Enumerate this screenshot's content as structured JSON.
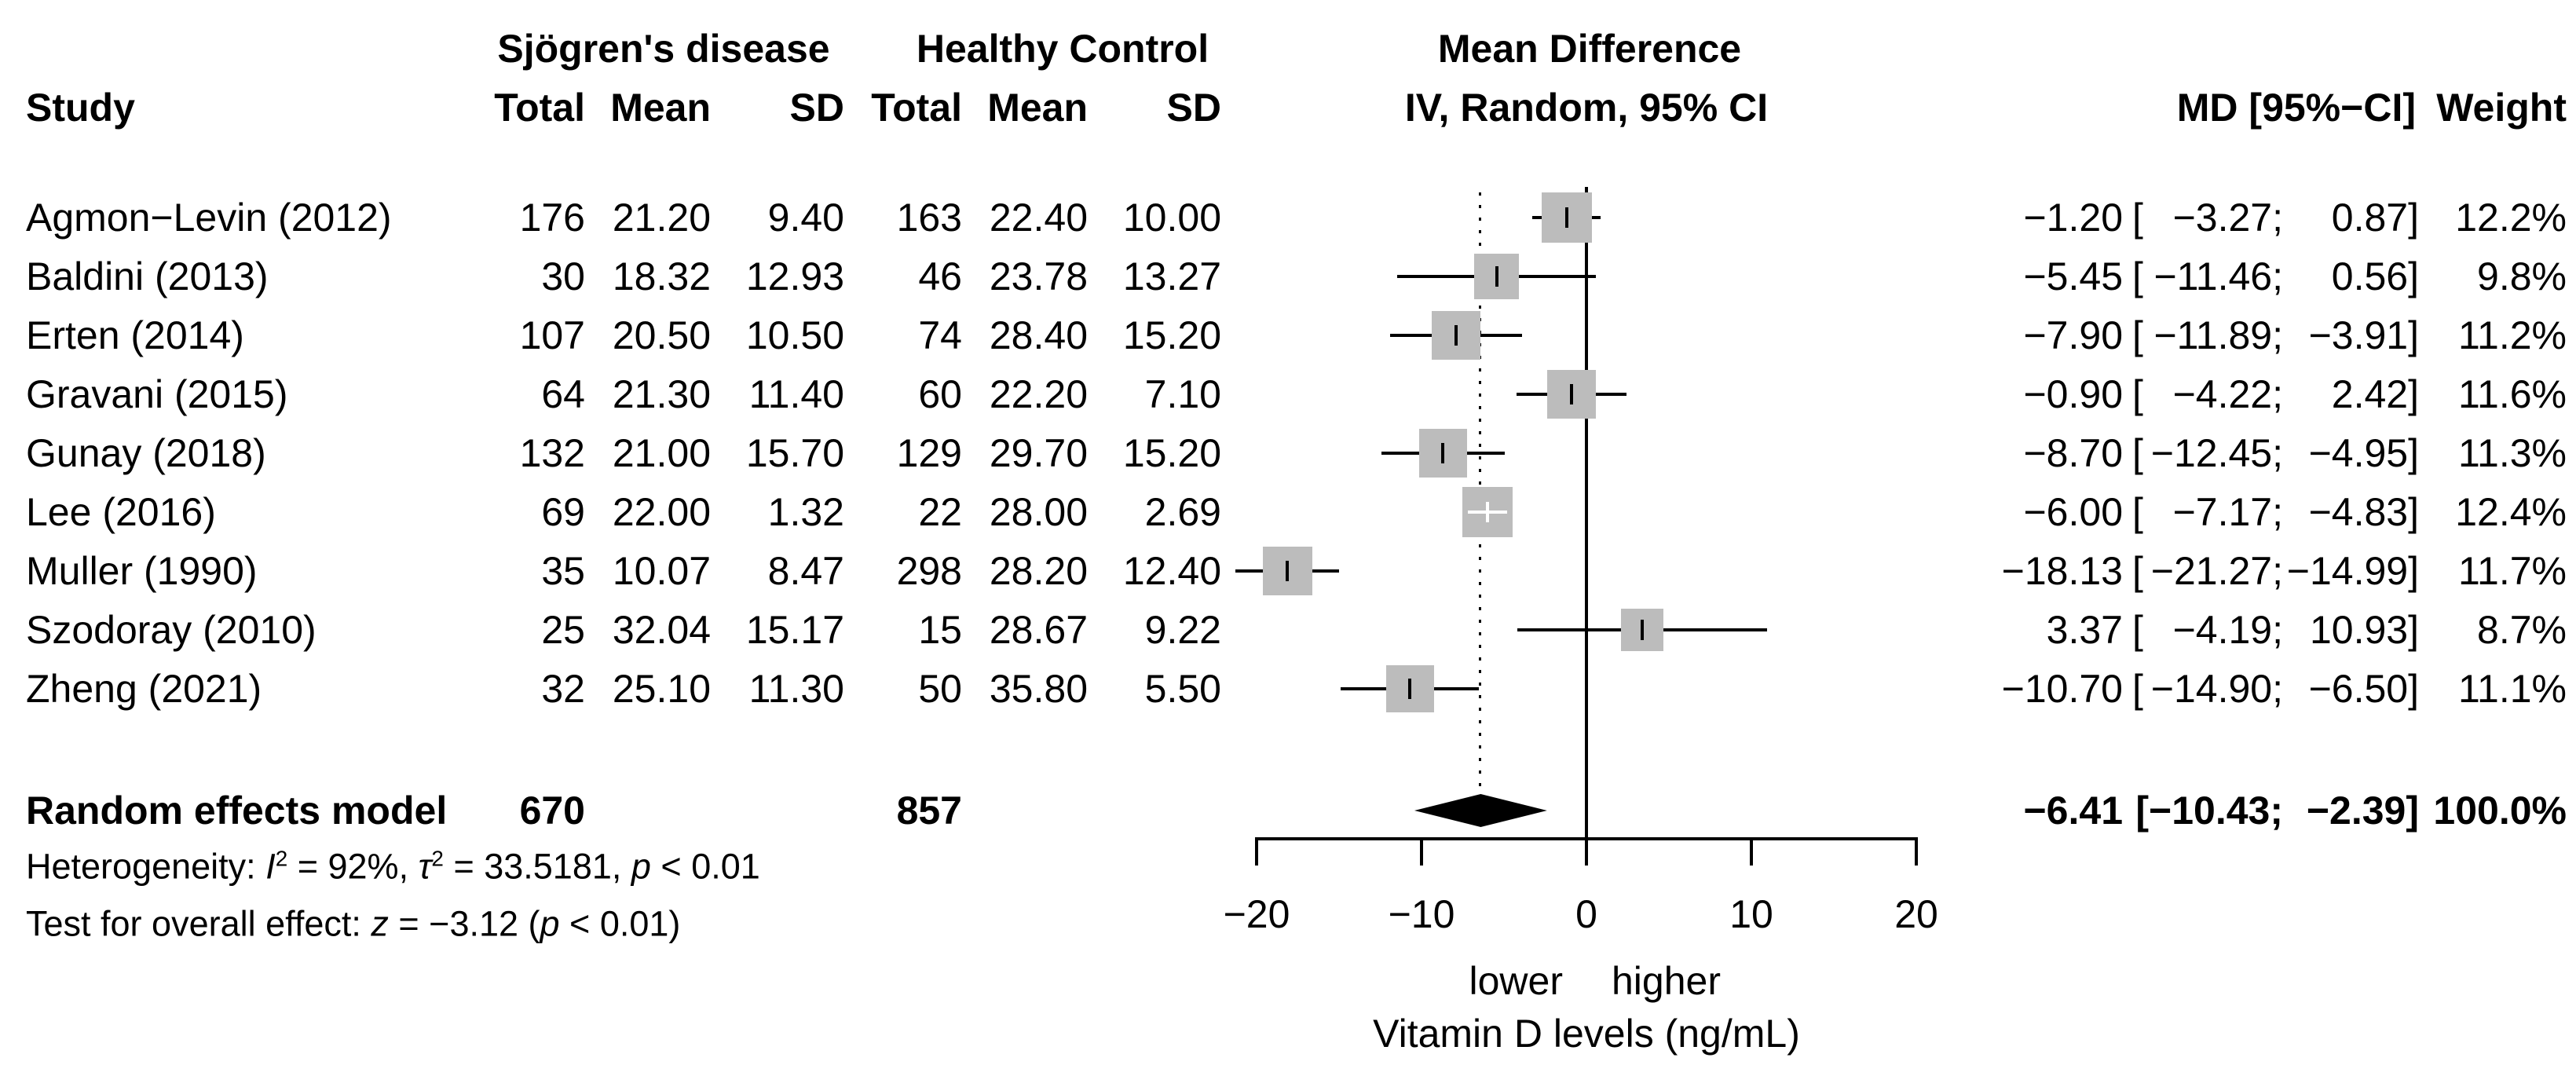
{
  "header": {
    "group_experimental": "Sjögren's disease",
    "group_control": "Healthy Control",
    "effect_title": "Mean Difference",
    "study": "Study",
    "total": "Total",
    "mean": "Mean",
    "sd": "SD",
    "model_line": "IV, Random, 95% CI",
    "md_ci": "MD [95%−CI]",
    "weight": "Weight"
  },
  "chart_data": {
    "type": "scatter",
    "variant": "forest-plot-meta-analysis",
    "effect_measure": "Mean Difference",
    "model": "IV, Random, 95% CI",
    "xlabel": "Vitamin D levels (ng/mL)",
    "xlim": [
      -20,
      20
    ],
    "x_ticks": [
      -20,
      -10,
      0,
      10,
      20
    ],
    "x_tick_labels": [
      "−20",
      "−10",
      "0",
      "10",
      "20"
    ],
    "direction_labels": {
      "left": "lower",
      "right": "higher"
    },
    "ref_line_x": 0,
    "pooled_dotted_line_x": -6.41,
    "ci_open": "[",
    "studies": [
      {
        "name": "Agmon−Levin (2012)",
        "exp_total": "176",
        "exp_mean": "21.20",
        "exp_sd": "9.40",
        "ctrl_total": "163",
        "ctrl_mean": "22.40",
        "ctrl_sd": "10.00",
        "md": -1.2,
        "ci_lower": -3.27,
        "ci_upper": 0.87,
        "weight_pct": 12.2,
        "md_str": "−1.20",
        "lo_str": "−3.27;",
        "hi_str": "0.87]",
        "weight_str": "12.2%"
      },
      {
        "name": "Baldini (2013)",
        "exp_total": "30",
        "exp_mean": "18.32",
        "exp_sd": "12.93",
        "ctrl_total": "46",
        "ctrl_mean": "23.78",
        "ctrl_sd": "13.27",
        "md": -5.45,
        "ci_lower": -11.46,
        "ci_upper": 0.56,
        "weight_pct": 9.8,
        "md_str": "−5.45",
        "lo_str": "−11.46;",
        "hi_str": "0.56]",
        "weight_str": "9.8%"
      },
      {
        "name": "Erten (2014)",
        "exp_total": "107",
        "exp_mean": "20.50",
        "exp_sd": "10.50",
        "ctrl_total": "74",
        "ctrl_mean": "28.40",
        "ctrl_sd": "15.20",
        "md": -7.9,
        "ci_lower": -11.89,
        "ci_upper": -3.91,
        "weight_pct": 11.2,
        "md_str": "−7.90",
        "lo_str": "−11.89;",
        "hi_str": "−3.91]",
        "weight_str": "11.2%"
      },
      {
        "name": "Gravani (2015)",
        "exp_total": "64",
        "exp_mean": "21.30",
        "exp_sd": "11.40",
        "ctrl_total": "60",
        "ctrl_mean": "22.20",
        "ctrl_sd": "7.10",
        "md": -0.9,
        "ci_lower": -4.22,
        "ci_upper": 2.42,
        "weight_pct": 11.6,
        "md_str": "−0.90",
        "lo_str": "−4.22;",
        "hi_str": "2.42]",
        "weight_str": "11.6%"
      },
      {
        "name": "Gunay (2018)",
        "exp_total": "132",
        "exp_mean": "21.00",
        "exp_sd": "15.70",
        "ctrl_total": "129",
        "ctrl_mean": "29.70",
        "ctrl_sd": "15.20",
        "md": -8.7,
        "ci_lower": -12.45,
        "ci_upper": -4.95,
        "weight_pct": 11.3,
        "md_str": "−8.70",
        "lo_str": "−12.45;",
        "hi_str": "−4.95]",
        "weight_str": "11.3%"
      },
      {
        "name": "Lee (2016)",
        "exp_total": "69",
        "exp_mean": "22.00",
        "exp_sd": "1.32",
        "ctrl_total": "22",
        "ctrl_mean": "28.00",
        "ctrl_sd": "2.69",
        "md": -6.0,
        "ci_lower": -7.17,
        "ci_upper": -4.83,
        "weight_pct": 12.4,
        "md_str": "−6.00",
        "lo_str": "−7.17;",
        "hi_str": "−4.83]",
        "weight_str": "12.4%"
      },
      {
        "name": "Muller (1990)",
        "exp_total": "35",
        "exp_mean": "10.07",
        "exp_sd": "8.47",
        "ctrl_total": "298",
        "ctrl_mean": "28.20",
        "ctrl_sd": "12.40",
        "md": -18.13,
        "ci_lower": -21.27,
        "ci_upper": -14.99,
        "weight_pct": 11.7,
        "md_str": "−18.13",
        "lo_str": "−21.27;",
        "hi_str": "−14.99]",
        "weight_str": "11.7%"
      },
      {
        "name": "Szodoray (2010)",
        "exp_total": "25",
        "exp_mean": "32.04",
        "exp_sd": "15.17",
        "ctrl_total": "15",
        "ctrl_mean": "28.67",
        "ctrl_sd": "9.22",
        "md": 3.37,
        "ci_lower": -4.19,
        "ci_upper": 10.93,
        "weight_pct": 8.7,
        "md_str": "3.37",
        "lo_str": "−4.19;",
        "hi_str": "10.93]",
        "weight_str": "8.7%"
      },
      {
        "name": "Zheng (2021)",
        "exp_total": "32",
        "exp_mean": "25.10",
        "exp_sd": "11.30",
        "ctrl_total": "50",
        "ctrl_mean": "35.80",
        "ctrl_sd": "5.50",
        "md": -10.7,
        "ci_lower": -14.9,
        "ci_upper": -6.5,
        "weight_pct": 11.1,
        "md_str": "−10.70",
        "lo_str": "−14.90;",
        "hi_str": "−6.50]",
        "weight_str": "11.1%"
      }
    ],
    "summary": {
      "label": "Random effects model",
      "exp_total": "670",
      "ctrl_total": "857",
      "md": -6.41,
      "ci_lower": -10.43,
      "ci_upper": -2.39,
      "md_str": "−6.41",
      "lo_str": "[−10.43;",
      "hi_str": "−2.39]",
      "weight_str": "100.0%"
    }
  },
  "footer": {
    "het_label": "Heterogeneity: ",
    "het_I": "I",
    "het_I_sup": "2",
    "het_mid1": " = 92%, ",
    "het_tau": "τ",
    "het_tau_sup": "2",
    "het_mid2": " = 33.5181, ",
    "het_p": "p",
    "het_end": " < 0.01",
    "test_label": "Test for overall effect: ",
    "test_z": "z",
    "test_mid": " = −3.12 (",
    "test_p": "p",
    "test_end": " < 0.01)"
  },
  "colors": {
    "square": "#bcbcbc",
    "diamond": "#000000",
    "line": "#000000",
    "text": "#000000"
  }
}
